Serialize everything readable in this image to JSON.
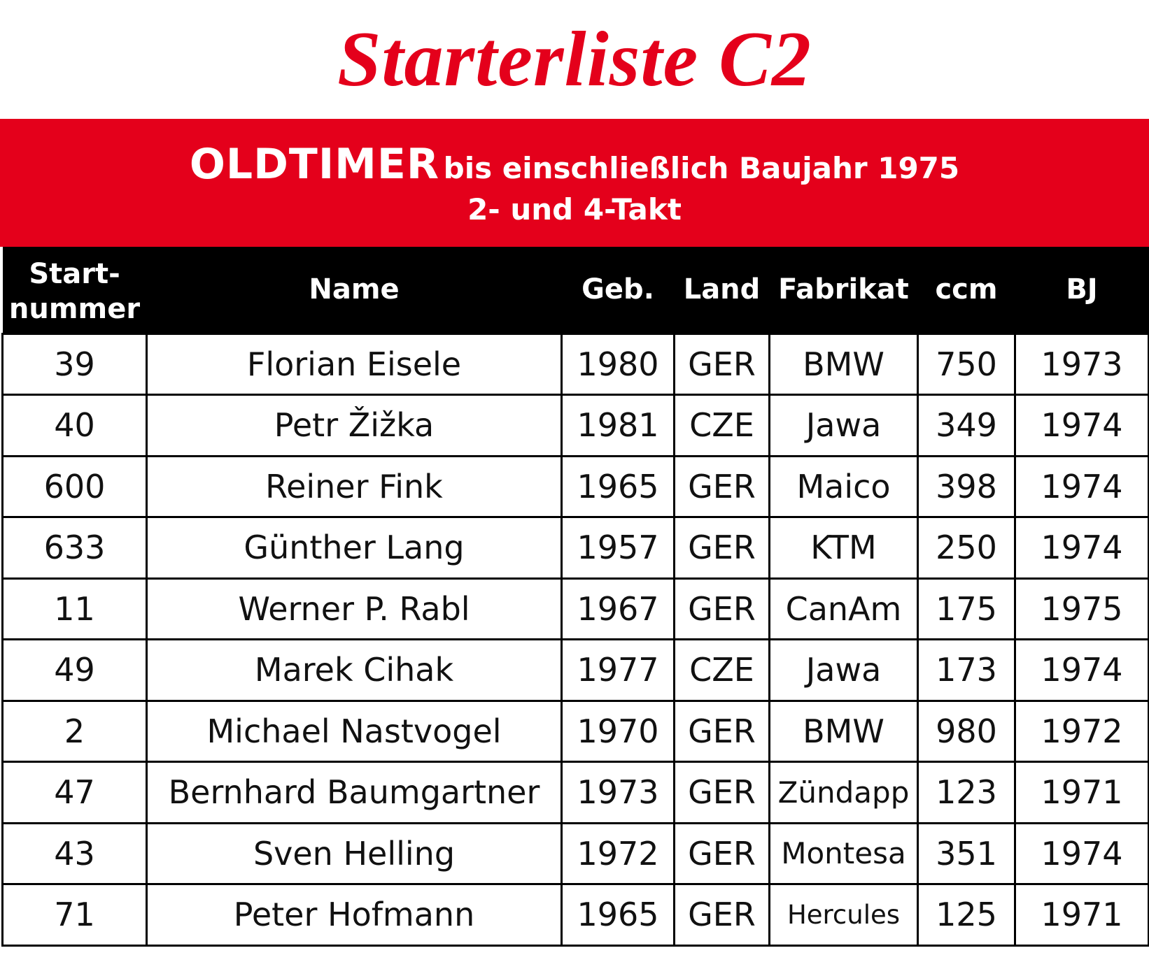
{
  "title": "Starterliste C2",
  "banner": {
    "category": "OLDTIMER",
    "category_detail": "bis einschließlich Baujahr 1975",
    "engine": "2- und 4-Takt"
  },
  "columns": {
    "startnummer_line1": "Start-",
    "startnummer_line2": "nummer",
    "name": "Name",
    "geb": "Geb.",
    "land": "Land",
    "fabrikat": "Fabrikat",
    "ccm": "ccm",
    "bj": "BJ"
  },
  "rows": [
    {
      "nr": "39",
      "name": "Florian Eisele",
      "geb": "1980",
      "land": "GER",
      "fabrikat": "BMW",
      "ccm": "750",
      "bj": "1973"
    },
    {
      "nr": "40",
      "name": "Petr Žižka",
      "geb": "1981",
      "land": "CZE",
      "fabrikat": "Jawa",
      "ccm": "349",
      "bj": "1974"
    },
    {
      "nr": "600",
      "name": "Reiner Fink",
      "geb": "1965",
      "land": "GER",
      "fabrikat": "Maico",
      "ccm": "398",
      "bj": "1974"
    },
    {
      "nr": "633",
      "name": "Günther Lang",
      "geb": "1957",
      "land": "GER",
      "fabrikat": "KTM",
      "ccm": "250",
      "bj": "1974"
    },
    {
      "nr": "11",
      "name": "Werner P. Rabl",
      "geb": "1967",
      "land": "GER",
      "fabrikat": "CanAm",
      "ccm": "175",
      "bj": "1975"
    },
    {
      "nr": "49",
      "name": "Marek Cihak",
      "geb": "1977",
      "land": "CZE",
      "fabrikat": "Jawa",
      "ccm": "173",
      "bj": "1974"
    },
    {
      "nr": "2",
      "name": "Michael Nastvogel",
      "geb": "1970",
      "land": "GER",
      "fabrikat": "BMW",
      "ccm": "980",
      "bj": "1972"
    },
    {
      "nr": "47",
      "name": "Bernhard Baumgartner",
      "geb": "1973",
      "land": "GER",
      "fabrikat": "Zündapp",
      "ccm": "123",
      "bj": "1971"
    },
    {
      "nr": "43",
      "name": "Sven Helling",
      "geb": "1972",
      "land": "GER",
      "fabrikat": "Montesa",
      "ccm": "351",
      "bj": "1974"
    },
    {
      "nr": "71",
      "name": "Peter Hofmann",
      "geb": "1965",
      "land": "GER",
      "fabrikat": "Hercules",
      "ccm": "125",
      "bj": "1971"
    }
  ],
  "colors": {
    "accent_red": "#e4001b",
    "header_black": "#000000",
    "text": "#111111"
  }
}
